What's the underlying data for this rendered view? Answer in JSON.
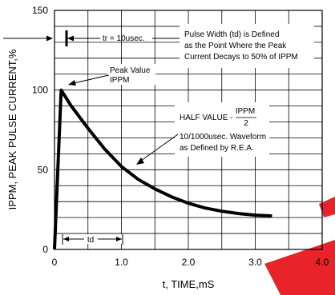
{
  "chart_data": {
    "type": "line",
    "xlabel": "t, TIME,mS",
    "ylabel": "IPPM, PEAK PULSE CURRENT,%",
    "xlim": [
      0,
      4.0
    ],
    "ylim": [
      0,
      150
    ],
    "grid": true,
    "x_ticks": [
      "0",
      "1.0",
      "2.0",
      "3.0",
      "4.0"
    ],
    "y_ticks": [
      "0",
      "50",
      "100",
      "150"
    ],
    "series": [
      {
        "x": [
          0,
          0.1,
          0.25,
          0.5,
          0.75,
          1.0,
          1.25,
          1.5,
          1.75,
          2.0,
          2.25,
          2.5,
          2.75,
          3.0,
          3.25
        ],
        "y": [
          0,
          100,
          90,
          76,
          63,
          52,
          44,
          38,
          33,
          29,
          26,
          24,
          22.5,
          21.5,
          21
        ]
      }
    ],
    "annotations": {
      "tr": "tr = 10usec.",
      "pulse_width": [
        "Pulse Width (td) is Defined",
        "as the Point Where the Peak",
        "Current Decays to 50% of IPPM"
      ],
      "peak_value": [
        "Peak Value",
        "IPPM"
      ],
      "half_value_prefix": "HALF VALUE -",
      "half_value_num": "IPPM",
      "half_value_den": "2",
      "waveform": [
        "10/1000usec. Waveform",
        "as Defined by R.E.A."
      ],
      "td": "td"
    },
    "watermark_color": "#e8232a",
    "line_color": "#000000"
  }
}
